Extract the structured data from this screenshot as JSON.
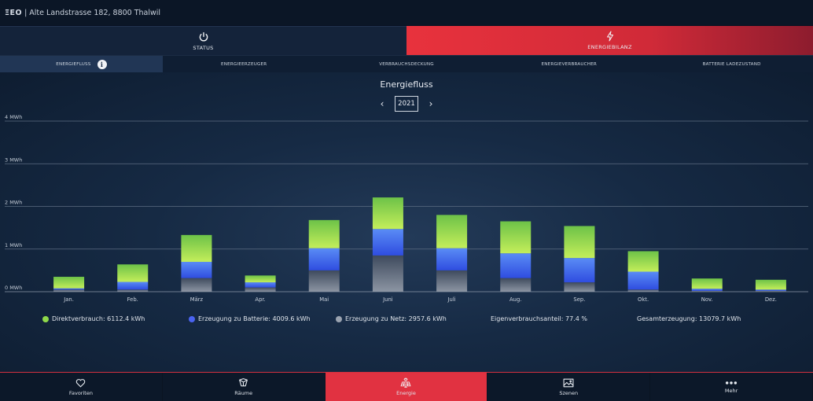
{
  "topbar": {
    "logo": "ΞEO",
    "address": "| Alte Landstrasse 182, 8800 Thalwil"
  },
  "main_tabs": [
    {
      "label": "STATUS",
      "icon": "power-icon"
    },
    {
      "label": "ENERGIEBILANZ",
      "icon": "lightning-icon"
    }
  ],
  "sub_tabs": [
    {
      "label": "ENERGIEFLUSS",
      "active": true
    },
    {
      "label": "ENERGIEERZEUGER"
    },
    {
      "label": "VERBRAUCHSDECKUNG"
    },
    {
      "label": "ENERGIEVERBRAUCHER"
    },
    {
      "label": "BATTERIE LADEZUSTAND"
    }
  ],
  "info_icon": "i",
  "chart_title": "Energiefluss",
  "year": {
    "prev": "‹",
    "value": "2021",
    "next": "›"
  },
  "chart_data": {
    "type": "bar",
    "stacked": true,
    "title": "Energiefluss",
    "categories": [
      "Jan.",
      "Feb.",
      "März",
      "Apr.",
      "Mai",
      "Juni",
      "Juli",
      "Aug.",
      "Sep.",
      "Okt.",
      "Nov.",
      "Dez."
    ],
    "y_ticks": [
      "0 MWh",
      "1 MWh",
      "2 MWh",
      "3 MWh",
      "4 MWh"
    ],
    "ylim": [
      0,
      4
    ],
    "unit": "MWh",
    "grid": true,
    "series": [
      {
        "name": "Erzeugung zu Netz",
        "color": "#6b7687",
        "values": [
          0.05,
          0.05,
          0.32,
          0.1,
          0.5,
          0.85,
          0.5,
          0.32,
          0.22,
          0.05,
          0.02,
          0.02
        ]
      },
      {
        "name": "Erzeugung zu Batterie",
        "color": "#3d57e8",
        "values": [
          0.03,
          0.18,
          0.38,
          0.12,
          0.52,
          0.62,
          0.52,
          0.58,
          0.57,
          0.42,
          0.05,
          0.03
        ]
      },
      {
        "name": "Direktverbrauch",
        "color": "#8fd94a",
        "values": [
          0.27,
          0.41,
          0.63,
          0.16,
          0.66,
          0.74,
          0.78,
          0.75,
          0.75,
          0.48,
          0.24,
          0.23
        ]
      }
    ]
  },
  "legend": [
    {
      "label": "Direktverbrauch: 6112.4 kWh",
      "color": "#8fd94a"
    },
    {
      "label": "Erzeugung zu Batterie: 4009.6 kWh",
      "color": "#4a63f0"
    },
    {
      "label": "Erzeugung zu Netz: 2957.6 kWh",
      "color": "#9aa3b0"
    },
    {
      "label": "Eigenverbrauchsanteil: 77.4 %"
    },
    {
      "label": "Gesamterzeugung: 13079.7 kWh"
    }
  ],
  "bottom_nav": [
    {
      "label": "Favoriten",
      "icon": "heart-icon"
    },
    {
      "label": "Räume",
      "icon": "rooms-icon"
    },
    {
      "label": "Energie",
      "icon": "solar-panel-icon",
      "active": true
    },
    {
      "label": "Szenen",
      "icon": "image-icon"
    },
    {
      "label": "Mehr",
      "icon": "more-dots-icon"
    }
  ]
}
